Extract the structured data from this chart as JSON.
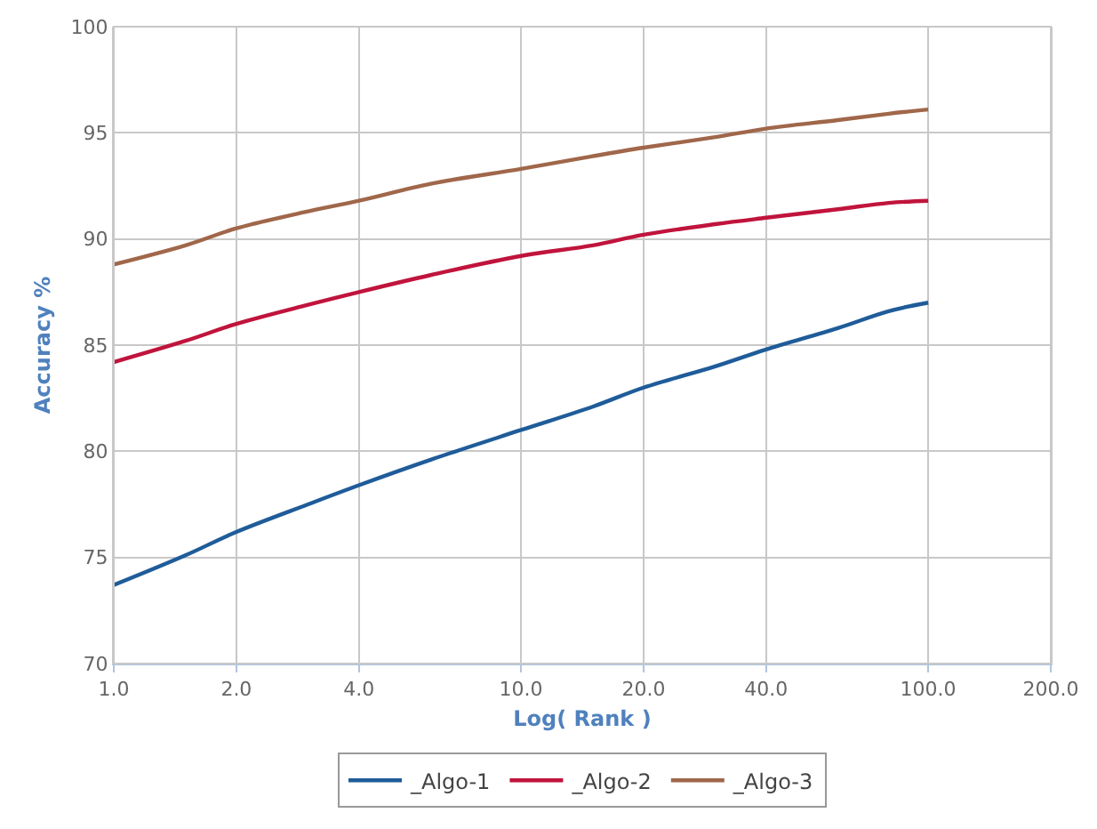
{
  "chart_data": {
    "type": "line",
    "xlabel": "Log( Rank )",
    "ylabel": "Accuracy %",
    "log": "x",
    "x": [
      1,
      1.5,
      2,
      3,
      4,
      6,
      10,
      15,
      20,
      30,
      40,
      60,
      80,
      100
    ],
    "xlim": [
      1,
      200
    ],
    "xticks": [
      {
        "value": 1,
        "label": "1.0"
      },
      {
        "value": 2,
        "label": "2.0"
      },
      {
        "value": 4,
        "label": "4.0"
      },
      {
        "value": 10,
        "label": "10.0"
      },
      {
        "value": 20,
        "label": "20.0"
      },
      {
        "value": 40,
        "label": "40.0"
      },
      {
        "value": 100,
        "label": "100.0"
      },
      {
        "value": 200,
        "label": "200.0"
      }
    ],
    "ylim": [
      70,
      100
    ],
    "yticks": [
      70,
      75,
      80,
      85,
      90,
      95,
      100
    ],
    "grid": true,
    "legend": "bottom",
    "marker": "none",
    "line_style": "solid",
    "series": [
      {
        "name": "_Algo-1",
        "color": "#1f5c99",
        "values": [
          73.7,
          75.1,
          76.2,
          77.5,
          78.4,
          79.6,
          81.0,
          82.1,
          83.0,
          84.0,
          84.8,
          85.8,
          86.6,
          87.0
        ]
      },
      {
        "name": "_Algo-2",
        "color": "#c0143c",
        "values": [
          84.2,
          85.2,
          86.0,
          86.9,
          87.5,
          88.3,
          89.2,
          89.7,
          90.2,
          90.7,
          91.0,
          91.4,
          91.7,
          91.8
        ]
      },
      {
        "name": "_Algo-3",
        "color": "#a0674a",
        "values": [
          88.8,
          89.7,
          90.5,
          91.3,
          91.8,
          92.6,
          93.3,
          93.9,
          94.3,
          94.8,
          95.2,
          95.6,
          95.9,
          96.1
        ]
      }
    ]
  }
}
